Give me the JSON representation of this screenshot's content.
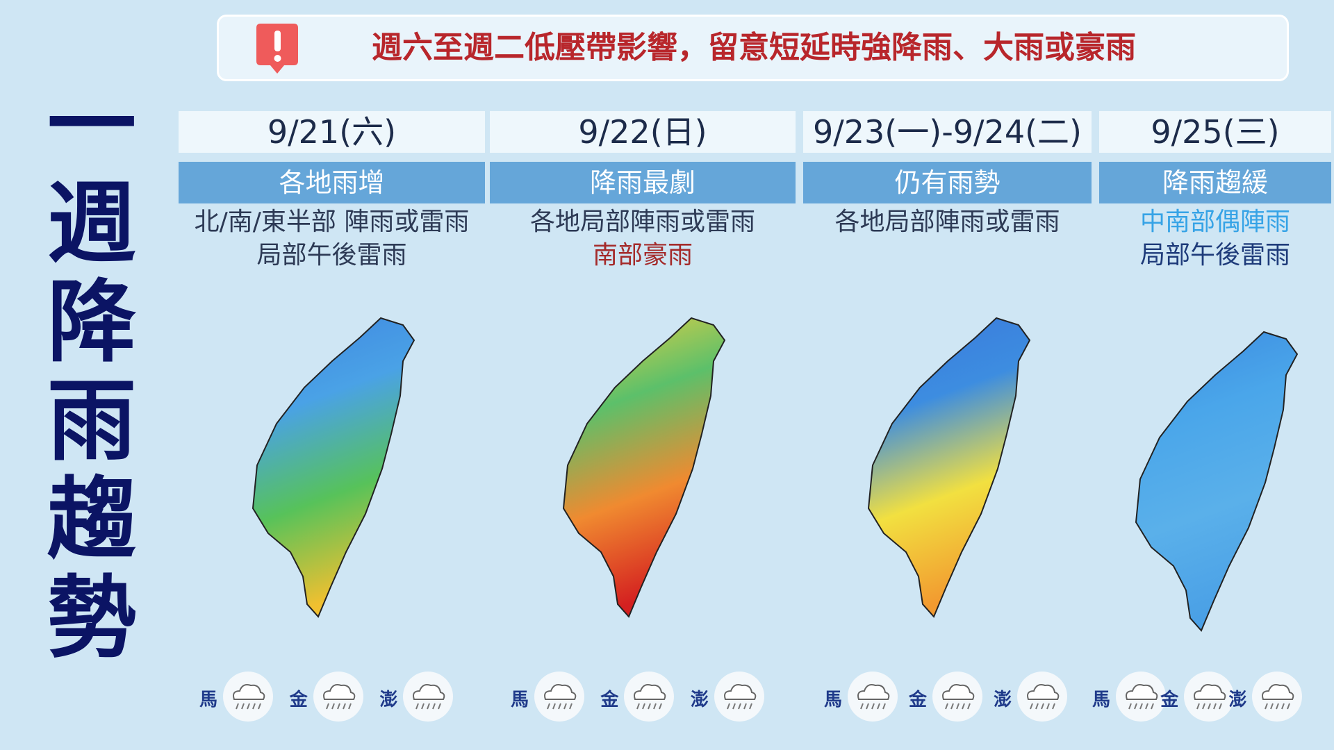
{
  "title": "一週降雨趨勢",
  "banner": "週六至週二低壓帶影響，留意短延時強降雨、大雨或豪雨",
  "panels": [
    {
      "date": "9/21(六)",
      "summary": "各地雨增",
      "lines": [
        "北/南/東半部 陣雨或雷雨",
        "局部午後雷雨"
      ],
      "islands": [
        "馬",
        "金",
        "澎"
      ]
    },
    {
      "date": "9/22(日)",
      "summary": "降雨最劇",
      "lines": [
        "各地局部陣雨或雷雨",
        "南部豪雨"
      ],
      "islands": [
        "馬",
        "金",
        "澎"
      ]
    },
    {
      "date": "9/23(一)-9/24(二)",
      "summary": "仍有雨勢",
      "lines": [
        "各地局部陣雨或雷雨"
      ],
      "islands": [
        "馬",
        "金",
        "澎"
      ]
    },
    {
      "date": "9/25(三)",
      "summary": "降雨趨緩",
      "lines": [
        "中南部偶陣雨",
        "局部午後雷雨"
      ],
      "islands": [
        "馬",
        "金",
        "澎"
      ]
    }
  ]
}
